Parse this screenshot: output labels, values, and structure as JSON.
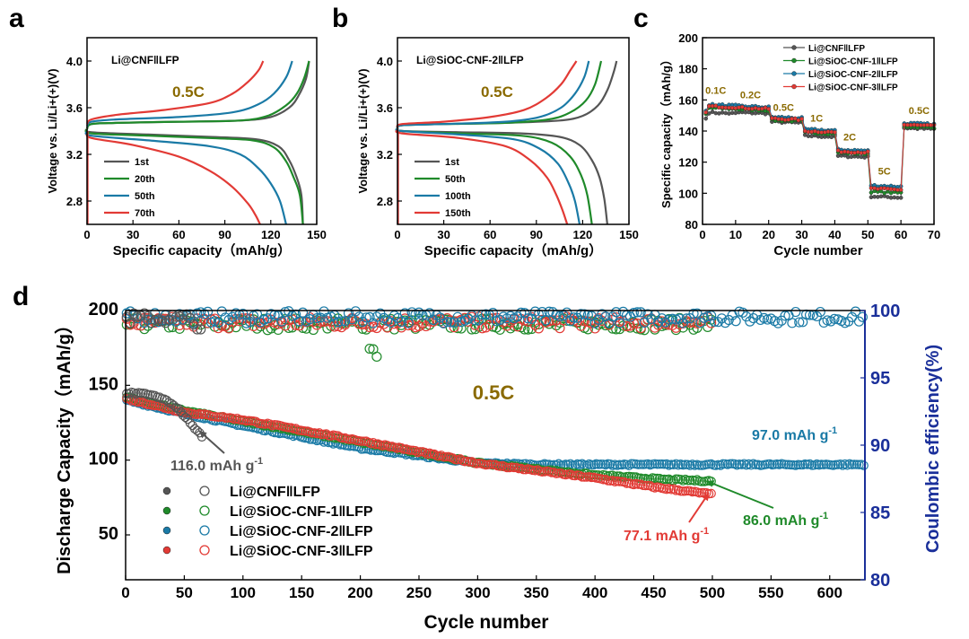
{
  "colors": {
    "black": "#000000",
    "gray": "#555555",
    "green": "#1f8a2a",
    "blue": "#1a7aa6",
    "red": "#e23a35",
    "orange_text": "#8a6a00",
    "navy": "#1a2f9a"
  },
  "panels": {
    "a": {
      "letter": "a"
    },
    "b": {
      "letter": "b"
    },
    "c": {
      "letter": "c"
    },
    "d": {
      "letter": "d"
    }
  },
  "chart_data": [
    {
      "id": "a",
      "type": "line",
      "title": "Li@CNF‖LFP",
      "rate_label": "0.5C",
      "xlabel": "Specific capacity（mAh/g）",
      "ylabel": "Voltage vs. Li/Li+(+)(V)",
      "xlim": [
        0,
        150
      ],
      "ylim": [
        2.6,
        4.2
      ],
      "xticks": [
        "0",
        "30",
        "60",
        "90",
        "120",
        "150"
      ],
      "yticks": [
        "2.8",
        "3.2",
        "3.6",
        "4.0"
      ],
      "series": [
        {
          "name": "1st",
          "color": "#555555",
          "charge": [
            [
              0,
              3.42
            ],
            [
              3,
              3.46
            ],
            [
              20,
              3.47
            ],
            [
              60,
              3.48
            ],
            [
              100,
              3.49
            ],
            [
              120,
              3.52
            ],
            [
              132,
              3.6
            ],
            [
              138,
              3.7
            ],
            [
              143,
              3.85
            ],
            [
              145,
              4.0
            ]
          ],
          "discharge": [
            [
              0,
              3.42
            ],
            [
              3,
              3.39
            ],
            [
              40,
              3.37
            ],
            [
              80,
              3.35
            ],
            [
              110,
              3.33
            ],
            [
              125,
              3.27
            ],
            [
              132,
              3.15
            ],
            [
              137,
              3.0
            ],
            [
              140,
              2.85
            ],
            [
              141,
              2.6
            ]
          ]
        },
        {
          "name": "20th",
          "color": "#1f8a2a",
          "charge": [
            [
              0,
              3.42
            ],
            [
              3,
              3.46
            ],
            [
              20,
              3.47
            ],
            [
              60,
              3.48
            ],
            [
              100,
              3.49
            ],
            [
              118,
              3.53
            ],
            [
              130,
              3.62
            ],
            [
              137,
              3.72
            ],
            [
              142,
              3.86
            ],
            [
              145,
              4.0
            ]
          ],
          "discharge": [
            [
              0,
              3.42
            ],
            [
              3,
              3.38
            ],
            [
              40,
              3.36
            ],
            [
              80,
              3.34
            ],
            [
              108,
              3.32
            ],
            [
              122,
              3.26
            ],
            [
              130,
              3.14
            ],
            [
              135,
              3.0
            ],
            [
              139,
              2.85
            ],
            [
              141,
              2.6
            ]
          ]
        },
        {
          "name": "50th",
          "color": "#1a7aa6",
          "charge": [
            [
              0,
              3.44
            ],
            [
              3,
              3.48
            ],
            [
              20,
              3.5
            ],
            [
              60,
              3.52
            ],
            [
              95,
              3.56
            ],
            [
              112,
              3.63
            ],
            [
              122,
              3.72
            ],
            [
              130,
              3.86
            ],
            [
              134,
              4.0
            ]
          ],
          "discharge": [
            [
              0,
              3.4
            ],
            [
              3,
              3.36
            ],
            [
              40,
              3.32
            ],
            [
              80,
              3.27
            ],
            [
              100,
              3.2
            ],
            [
              112,
              3.08
            ],
            [
              120,
              2.95
            ],
            [
              126,
              2.8
            ],
            [
              130,
              2.6
            ]
          ]
        },
        {
          "name": "70th",
          "color": "#e23a35",
          "charge": [
            [
              0,
              3.46
            ],
            [
              3,
              3.5
            ],
            [
              20,
              3.54
            ],
            [
              50,
              3.58
            ],
            [
              80,
              3.64
            ],
            [
              95,
              3.72
            ],
            [
              105,
              3.82
            ],
            [
              112,
              3.92
            ],
            [
              115,
              4.0
            ]
          ],
          "discharge": [
            [
              0,
              3.38
            ],
            [
              3,
              3.34
            ],
            [
              30,
              3.28
            ],
            [
              60,
              3.18
            ],
            [
              80,
              3.06
            ],
            [
              95,
              2.92
            ],
            [
              105,
              2.78
            ],
            [
              110,
              2.68
            ],
            [
              113,
              2.6
            ]
          ]
        }
      ]
    },
    {
      "id": "b",
      "type": "line",
      "title": "Li@SiOC-CNF-2‖LFP",
      "rate_label": "0.5C",
      "xlabel": "Specific capacity（mAh/g）",
      "ylabel": "Voltage vs. Li/Li+(+)(V)",
      "xlim": [
        0,
        150
      ],
      "ylim": [
        2.6,
        4.2
      ],
      "xticks": [
        "0",
        "30",
        "60",
        "90",
        "120",
        "150"
      ],
      "yticks": [
        "2.8",
        "3.2",
        "3.6",
        "4.0"
      ],
      "series": [
        {
          "name": "1st",
          "color": "#555555",
          "charge": [
            [
              0,
              3.42
            ],
            [
              3,
              3.45
            ],
            [
              30,
              3.46
            ],
            [
              70,
              3.47
            ],
            [
              105,
              3.49
            ],
            [
              120,
              3.53
            ],
            [
              130,
              3.62
            ],
            [
              136,
              3.75
            ],
            [
              140,
              3.9
            ],
            [
              142,
              4.0
            ]
          ],
          "discharge": [
            [
              0,
              3.42
            ],
            [
              3,
              3.4
            ],
            [
              40,
              3.39
            ],
            [
              80,
              3.38
            ],
            [
              105,
              3.35
            ],
            [
              118,
              3.28
            ],
            [
              126,
              3.15
            ],
            [
              131,
              3.0
            ],
            [
              134,
              2.82
            ],
            [
              136,
              2.6
            ]
          ]
        },
        {
          "name": "50th",
          "color": "#1f8a2a",
          "charge": [
            [
              0,
              3.42
            ],
            [
              3,
              3.45
            ],
            [
              30,
              3.46
            ],
            [
              70,
              3.47
            ],
            [
              98,
              3.5
            ],
            [
              112,
              3.56
            ],
            [
              122,
              3.66
            ],
            [
              128,
              3.8
            ],
            [
              132,
              4.0
            ]
          ],
          "discharge": [
            [
              0,
              3.42
            ],
            [
              3,
              3.4
            ],
            [
              40,
              3.38
            ],
            [
              80,
              3.36
            ],
            [
              100,
              3.3
            ],
            [
              112,
              3.18
            ],
            [
              119,
              3.02
            ],
            [
              123,
              2.85
            ],
            [
              126,
              2.6
            ]
          ]
        },
        {
          "name": "100th",
          "color": "#1a7aa6",
          "charge": [
            [
              0,
              3.42
            ],
            [
              3,
              3.45
            ],
            [
              30,
              3.46
            ],
            [
              70,
              3.48
            ],
            [
              92,
              3.52
            ],
            [
              106,
              3.6
            ],
            [
              115,
              3.72
            ],
            [
              121,
              3.86
            ],
            [
              124,
              4.0
            ]
          ],
          "discharge": [
            [
              0,
              3.42
            ],
            [
              3,
              3.4
            ],
            [
              40,
              3.37
            ],
            [
              75,
              3.33
            ],
            [
              92,
              3.25
            ],
            [
              104,
              3.12
            ],
            [
              111,
              2.95
            ],
            [
              115,
              2.8
            ],
            [
              118,
              2.6
            ]
          ]
        },
        {
          "name": "150th",
          "color": "#e23a35",
          "charge": [
            [
              0,
              3.43
            ],
            [
              3,
              3.46
            ],
            [
              30,
              3.48
            ],
            [
              60,
              3.52
            ],
            [
              82,
              3.58
            ],
            [
              96,
              3.68
            ],
            [
              106,
              3.8
            ],
            [
              112,
              3.92
            ],
            [
              116,
              4.0
            ]
          ],
          "discharge": [
            [
              0,
              3.41
            ],
            [
              3,
              3.38
            ],
            [
              40,
              3.34
            ],
            [
              70,
              3.27
            ],
            [
              86,
              3.15
            ],
            [
              97,
              3.0
            ],
            [
              103,
              2.85
            ],
            [
              107,
              2.72
            ],
            [
              110,
              2.6
            ]
          ]
        }
      ]
    },
    {
      "id": "c",
      "type": "scatter",
      "xlabel": "Cycle number",
      "ylabel": "Specific capacity（mAh/g）",
      "xlim": [
        0,
        70
      ],
      "ylim": [
        80,
        200
      ],
      "xticks": [
        "0",
        "10",
        "20",
        "30",
        "40",
        "50",
        "60",
        "70"
      ],
      "yticks": [
        "80",
        "100",
        "120",
        "140",
        "160",
        "180",
        "200"
      ],
      "rate_labels": [
        {
          "text": "0.1C",
          "x": 4,
          "y": 164
        },
        {
          "text": "0.2C",
          "x": 14.5,
          "y": 161
        },
        {
          "text": "0.5C",
          "x": 24.5,
          "y": 153
        },
        {
          "text": "1C",
          "x": 34.5,
          "y": 146
        },
        {
          "text": "2C",
          "x": 44.5,
          "y": 134
        },
        {
          "text": "5C",
          "x": 55,
          "y": 112
        },
        {
          "text": "0.5C",
          "x": 65.5,
          "y": 151
        }
      ],
      "segments": [
        [
          1,
          10
        ],
        [
          11,
          20
        ],
        [
          21,
          30
        ],
        [
          31,
          40
        ],
        [
          41,
          50
        ],
        [
          51,
          60
        ],
        [
          61,
          70
        ]
      ],
      "series": [
        {
          "name": "Li@CNF‖LFP",
          "color": "#555555",
          "levels": [
            152,
            152,
            146,
            137,
            124,
            98,
            142
          ]
        },
        {
          "name": "Li@SiOC-CNF-1‖LFP",
          "color": "#1f8a2a",
          "levels": [
            155,
            154,
            147,
            139,
            126,
            101,
            143
          ]
        },
        {
          "name": "Li@SiOC-CNF-2‖LFP",
          "color": "#1a7aa6",
          "levels": [
            157,
            156,
            149,
            141,
            128,
            105,
            145
          ]
        },
        {
          "name": "Li@SiOC-CNF-3‖LFP",
          "color": "#e23a35",
          "levels": [
            156,
            155,
            148,
            140,
            127,
            103,
            144
          ]
        }
      ]
    },
    {
      "id": "d",
      "type": "scatter",
      "rate_label": "0.5C",
      "xlabel": "Cycle number",
      "ylabel": "Discharge Capacity（mAh/g）",
      "y2label": "Coulombic efficiency(%)",
      "xlim": [
        0,
        630
      ],
      "ylim": [
        20,
        200
      ],
      "y2lim": [
        80,
        100
      ],
      "xticks": [
        "0",
        "50",
        "100",
        "150",
        "200",
        "250",
        "300",
        "350",
        "400",
        "450",
        "500",
        "550",
        "600"
      ],
      "yticks": [
        "50",
        "100",
        "150",
        "200"
      ],
      "y2ticks": [
        "80",
        "85",
        "90",
        "95",
        "100"
      ],
      "annotations": [
        {
          "text": "116.0 mAh g",
          "sup": "-1",
          "color": "#555555"
        },
        {
          "text": "97.0 mAh g",
          "sup": "-1",
          "color": "#1a7aa6"
        },
        {
          "text": "86.0 mAh g",
          "sup": "-1",
          "color": "#1f8a2a"
        },
        {
          "text": "77.1 mAh g",
          "sup": "-1",
          "color": "#e23a35"
        }
      ],
      "series": [
        {
          "name": "Li@CNF‖LFP",
          "color": "#555555",
          "cycles": 65,
          "capacity": [
            [
              1,
              145
            ],
            [
              20,
              144
            ],
            [
              35,
              140
            ],
            [
              45,
              134
            ],
            [
              55,
              125
            ],
            [
              65,
              116
            ]
          ],
          "ce_mean": 99.4
        },
        {
          "name": "Li@SiOC-CNF-1‖LFP",
          "color": "#1f8a2a",
          "cycles": 500,
          "capacity": [
            [
              1,
              142
            ],
            [
              50,
              133
            ],
            [
              100,
              126
            ],
            [
              200,
              112
            ],
            [
              300,
              98
            ],
            [
              400,
              90
            ],
            [
              460,
              87
            ],
            [
              500,
              86
            ]
          ],
          "ce_mean": 99.0
        },
        {
          "name": "Li@SiOC-CNF-2‖LFP",
          "color": "#1a7aa6",
          "cycles": 630,
          "capacity": [
            [
              1,
              140
            ],
            [
              50,
              131
            ],
            [
              100,
              123
            ],
            [
              200,
              108
            ],
            [
              300,
              98
            ],
            [
              350,
              97
            ],
            [
              630,
              97
            ]
          ],
          "ce_mean": 99.5
        },
        {
          "name": "Li@SiOC-CNF-3‖LFP",
          "color": "#e23a35",
          "cycles": 500,
          "capacity": [
            [
              1,
              141
            ],
            [
              50,
              132
            ],
            [
              100,
              127
            ],
            [
              200,
              113
            ],
            [
              300,
              98
            ],
            [
              400,
              88
            ],
            [
              450,
              82
            ],
            [
              500,
              77.1
            ]
          ],
          "ce_mean": 99.1
        }
      ]
    }
  ]
}
